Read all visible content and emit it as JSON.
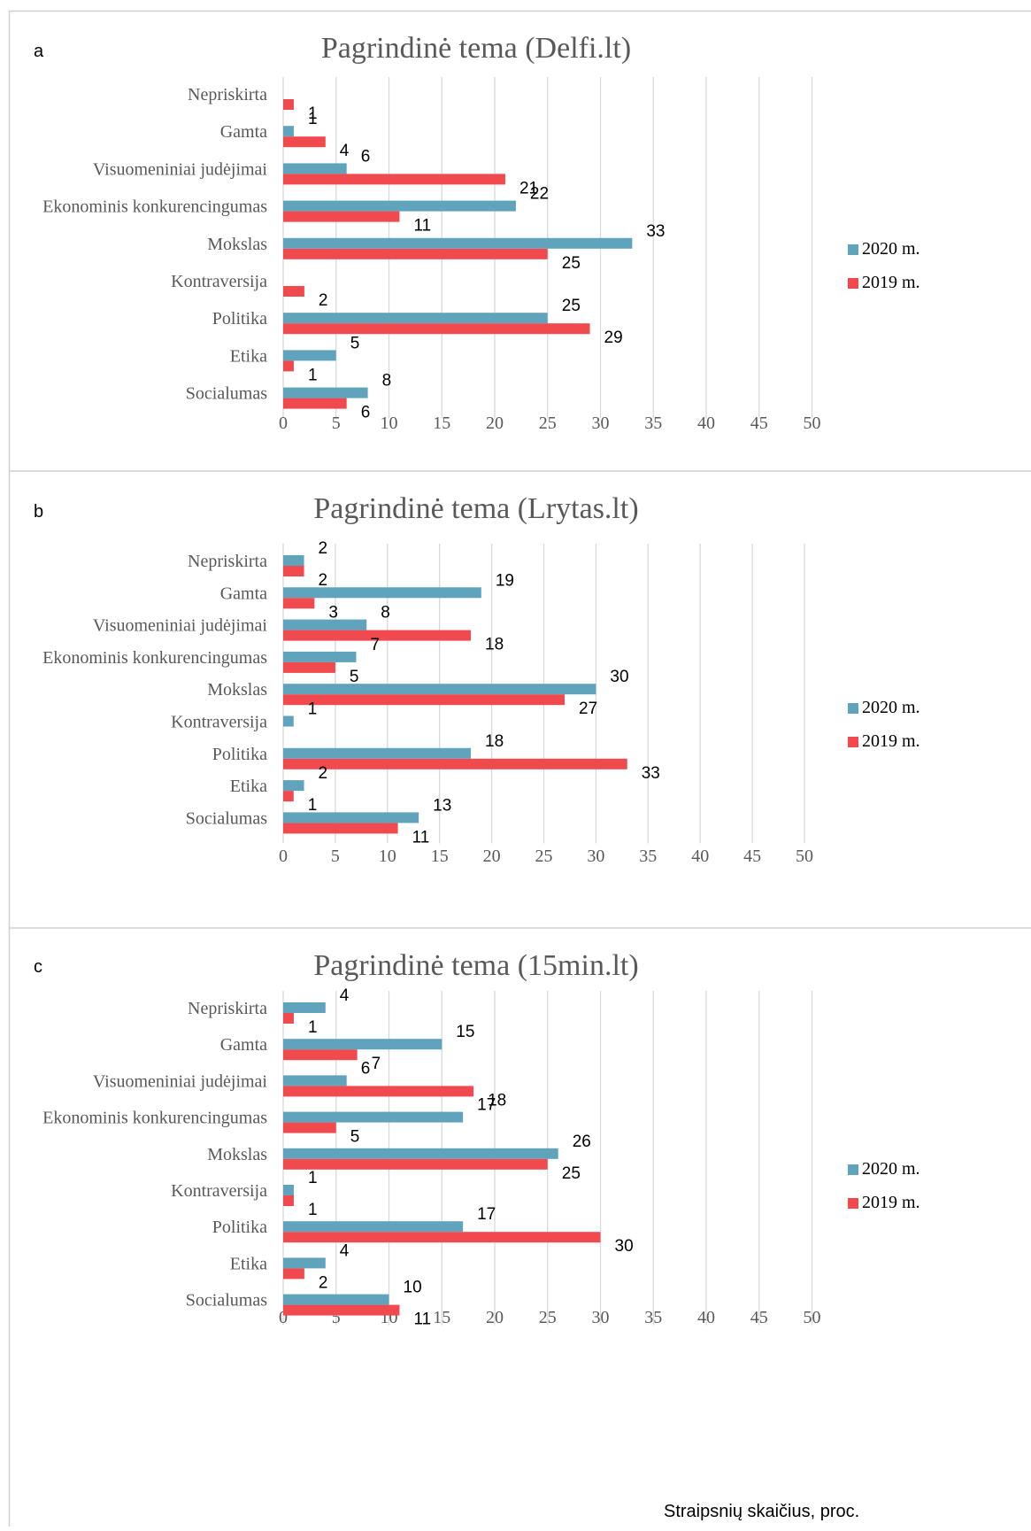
{
  "colors": {
    "s2020": "#5fa3bd",
    "s2019": "#f04a4f",
    "grid": "#d9d9d9",
    "border": "#d0d0d0"
  },
  "footer_label": "Straipsnių skaičius, proc.",
  "chart_data": [
    {
      "type": "bar",
      "orientation": "horizontal",
      "panel": "a",
      "title": "Pagrindinė tema (Delfi.lt)",
      "categories": [
        "Nepriskirta",
        "Gamta",
        "Visuomeniniai judėjimai",
        "Ekonominis konkurencingumas",
        "Mokslas",
        "Kontraversija",
        "Politika",
        "Etika",
        "Socialumas"
      ],
      "series": [
        {
          "name": "2020 m.",
          "values": [
            null,
            1,
            6,
            22,
            33,
            null,
            25,
            5,
            8
          ]
        },
        {
          "name": "2019 m.",
          "values": [
            1,
            4,
            21,
            11,
            25,
            2,
            29,
            1,
            6
          ]
        }
      ],
      "xticks": [
        0,
        5,
        10,
        15,
        20,
        25,
        30,
        35,
        40,
        45,
        50
      ],
      "xlim": [
        0,
        50
      ],
      "grid": true,
      "legend": "right"
    },
    {
      "type": "bar",
      "orientation": "horizontal",
      "panel": "b",
      "title": "Pagrindinė tema (Lrytas.lt)",
      "categories": [
        "Nepriskirta",
        "Gamta",
        "Visuomeniniai judėjimai",
        "Ekonominis konkurencingumas",
        "Mokslas",
        "Kontraversija",
        "Politika",
        "Etika",
        "Socialumas"
      ],
      "series": [
        {
          "name": "2020 m.",
          "values": [
            2,
            19,
            8,
            7,
            30,
            1,
            18,
            2,
            13
          ]
        },
        {
          "name": "2019 m.",
          "values": [
            2,
            3,
            18,
            5,
            27,
            null,
            33,
            1,
            11
          ]
        }
      ],
      "xticks": [
        0,
        5,
        10,
        15,
        20,
        25,
        30,
        35,
        40,
        45,
        50
      ],
      "xlim": [
        0,
        50
      ],
      "grid": true,
      "legend": "right"
    },
    {
      "type": "bar",
      "orientation": "horizontal",
      "panel": "c",
      "title": "Pagrindinė tema (15min.lt)",
      "categories": [
        "Nepriskirta",
        "Gamta",
        "Visuomeniniai judėjimai",
        "Ekonominis konkurencingumas",
        "Mokslas",
        "Kontraversija",
        "Politika",
        "Etika",
        "Socialumas"
      ],
      "series": [
        {
          "name": "2020 m.",
          "values": [
            4,
            15,
            6,
            17,
            26,
            1,
            17,
            4,
            10
          ]
        },
        {
          "name": "2019 m.",
          "values": [
            1,
            7,
            18,
            5,
            25,
            1,
            30,
            2,
            11
          ]
        }
      ],
      "xticks": [
        0,
        5,
        10,
        15,
        20,
        25,
        30,
        35,
        40,
        45,
        50
      ],
      "xlim": [
        0,
        50
      ],
      "grid": true,
      "legend": "right"
    }
  ]
}
